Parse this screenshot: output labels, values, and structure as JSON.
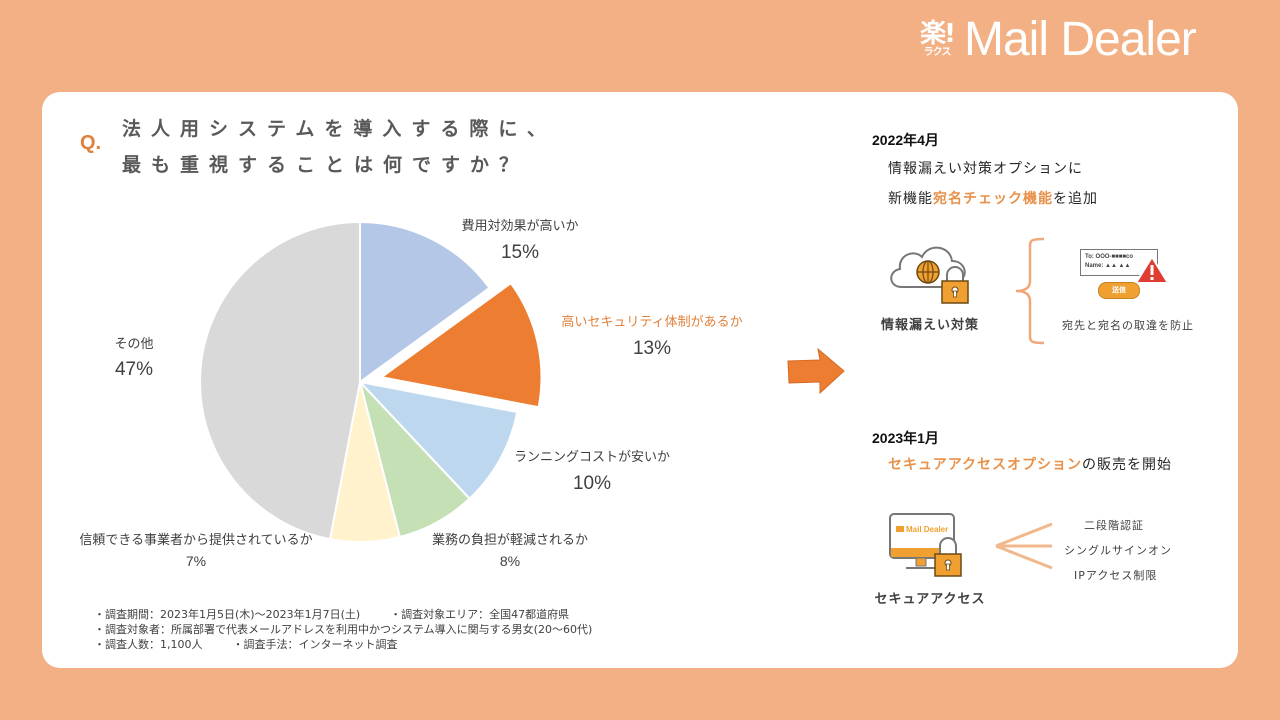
{
  "logo": {
    "mark_top": "楽!",
    "mark_bottom": "ラクス",
    "name": "Mail Dealer"
  },
  "question": {
    "prefix": "Q.",
    "line1": "法人用システムを導入する際に、",
    "line2": "最も重視することは何ですか？"
  },
  "chart_data": {
    "type": "pie",
    "title": "法人用システムを導入する際に、最も重視することは何ですか？",
    "start_angle": "top, clockwise",
    "categories": [
      "費用対効果が高いか",
      "高いセキュリティ体制があるか",
      "ランニングコストが安いか",
      "業務の負担が軽減されるか",
      "信頼できる事業者から提供されているか",
      "その他"
    ],
    "values": [
      15,
      13,
      10,
      8,
      7,
      47
    ],
    "unit": "%",
    "colors": [
      "#b4c7e7",
      "#ed7d31",
      "#bdd7ee",
      "#c5e0b4",
      "#fff2cc",
      "#d9d9d9"
    ],
    "exploded": [
      "高いセキュリティ体制があるか"
    ],
    "highlight_label_color": "#e0813b"
  },
  "labels": [
    {
      "name": "費用対効果が高いか",
      "pct": "15%"
    },
    {
      "name": "高いセキュリティ体制があるか",
      "pct": "13%"
    },
    {
      "name": "ランニングコストが安いか",
      "pct": "10%"
    },
    {
      "name": "業務の負担が軽減されるか",
      "pct": "8%"
    },
    {
      "name": "信頼できる事業者から提供されているか",
      "pct": "7%"
    },
    {
      "name": "その他",
      "pct": "47%"
    }
  ],
  "survey_notes": {
    "period": "・調査期間：2023年1月5日(木)〜2023年1月7日(土)",
    "area": "・調査対象エリア：全国47都道府県",
    "target": "・調査対象者：所属部署で代表メールアドレスを利用中かつシステム導入に関与する男女(20〜60代)",
    "count": "・調査人数：1,100人",
    "method": "・調査手法：インターネット調査"
  },
  "timeline": [
    {
      "date": "2022年4月",
      "desc_line1": "情報漏えい対策オプションに",
      "desc_line2_pre": "新機能",
      "desc_line2_hl": "宛名チェック機能",
      "desc_line2_post": "を追加",
      "icon_caption": "情報漏えい対策",
      "mail_to": "To: OOO-■■■■co",
      "mail_name": "Name: ▲▲ ▲▲",
      "send_button": "送信",
      "feature_caption": "宛先と宛名の取違を防止"
    },
    {
      "date": "2023年1月",
      "desc_hl": "セキュアアクセスオプション",
      "desc_post": "の販売を開始",
      "icon_caption": "セキュアアクセス",
      "monitor_logo": "Mail Dealer",
      "features": [
        "二段階認証",
        "シングルサインオン",
        "IPアクセス制限"
      ]
    }
  ],
  "colors": {
    "background": "#f2b084",
    "accent": "#e8914a",
    "icon_orange": "#f0a030",
    "arrow": "#ed7d31"
  }
}
